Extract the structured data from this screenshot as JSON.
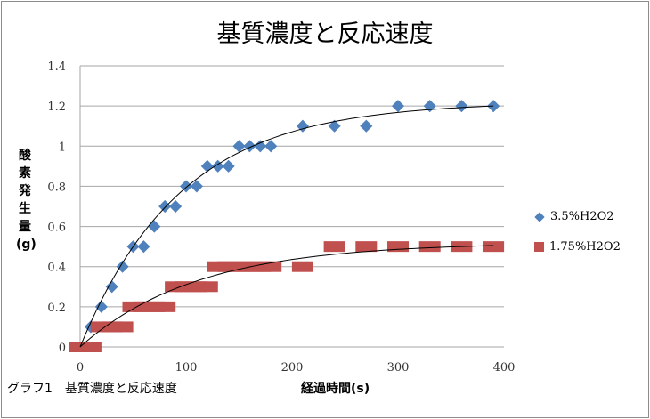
{
  "chart_data": {
    "type": "scatter",
    "title": "基質濃度と反応速度",
    "xlabel": "経過時間(s)",
    "ylabel": "酸素発生量(g)",
    "caption": "グラフ1　基質濃度と反応速度",
    "xlim": [
      0,
      400
    ],
    "ylim": [
      0,
      1.4
    ],
    "xticks": [
      "0",
      "100",
      "200",
      "300",
      "400"
    ],
    "yticks": [
      "0",
      "0.2",
      "0.4",
      "0.6",
      "0.8",
      "1",
      "1.2",
      "1.4"
    ],
    "grid": "horizontal",
    "legend_position": "right",
    "series": [
      {
        "name": "3.5%H2O2",
        "marker": "diamond",
        "color": "#4f81bd",
        "x": [
          10,
          20,
          30,
          40,
          50,
          60,
          70,
          80,
          90,
          100,
          110,
          120,
          130,
          140,
          150,
          160,
          170,
          180,
          210,
          240,
          270,
          300,
          330,
          360,
          390
        ],
        "y": [
          0.1,
          0.2,
          0.3,
          0.4,
          0.5,
          0.5,
          0.6,
          0.7,
          0.7,
          0.8,
          0.8,
          0.9,
          0.9,
          0.9,
          1,
          1,
          1,
          1,
          1.1,
          1.1,
          1.1,
          1.2,
          1.2,
          1.2,
          1.2
        ],
        "trendline": {
          "asymptote": 1.22,
          "tau": 95
        }
      },
      {
        "name": "1.75%H2O2",
        "marker": "square",
        "color": "#c0504d",
        "x": [
          0,
          10,
          20,
          30,
          40,
          50,
          60,
          70,
          80,
          90,
          100,
          110,
          120,
          130,
          140,
          150,
          160,
          170,
          180,
          210,
          240,
          270,
          300,
          330,
          360,
          390
        ],
        "y": [
          0,
          0,
          0.1,
          0.1,
          0.1,
          0.2,
          0.2,
          0.2,
          0.2,
          0.3,
          0.3,
          0.3,
          0.3,
          0.4,
          0.4,
          0.4,
          0.4,
          0.4,
          0.4,
          0.4,
          0.5,
          0.5,
          0.5,
          0.5,
          0.5,
          0.5
        ],
        "trendline": {
          "asymptote": 0.52,
          "tau": 110
        }
      }
    ]
  }
}
